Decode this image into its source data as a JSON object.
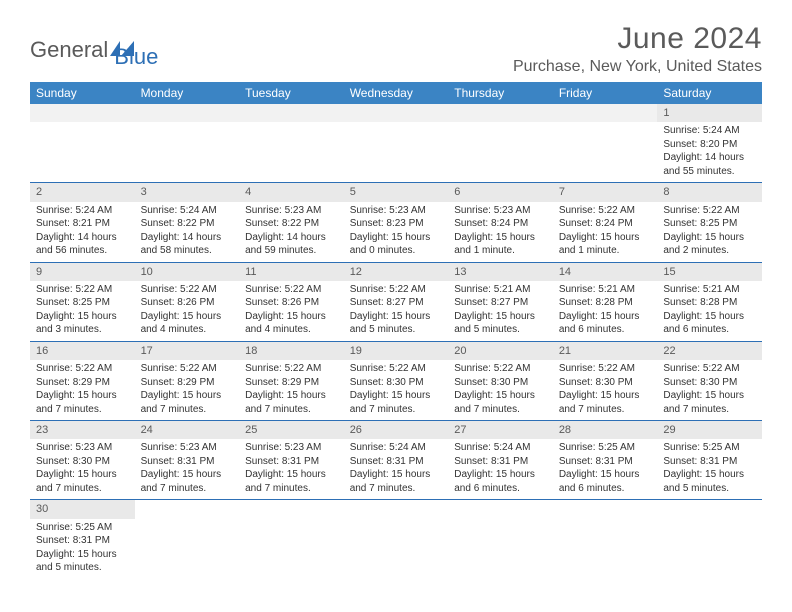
{
  "logo": {
    "text1": "General",
    "text2": "Blue"
  },
  "title": "June 2024",
  "location": "Purchase, New York, United States",
  "colors": {
    "header_bg": "#3b84c4",
    "header_text": "#ffffff",
    "daynum_bg": "#e9e9e9",
    "border": "#2d6fb5",
    "text": "#333333",
    "muted": "#5a5a5a",
    "logo_blue": "#2d6fb5"
  },
  "weekdays": [
    "Sunday",
    "Monday",
    "Tuesday",
    "Wednesday",
    "Thursday",
    "Friday",
    "Saturday"
  ],
  "weeks": [
    [
      null,
      null,
      null,
      null,
      null,
      null,
      {
        "n": "1",
        "sunrise": "Sunrise: 5:24 AM",
        "sunset": "Sunset: 8:20 PM",
        "daylight": "Daylight: 14 hours and 55 minutes."
      }
    ],
    [
      {
        "n": "2",
        "sunrise": "Sunrise: 5:24 AM",
        "sunset": "Sunset: 8:21 PM",
        "daylight": "Daylight: 14 hours and 56 minutes."
      },
      {
        "n": "3",
        "sunrise": "Sunrise: 5:24 AM",
        "sunset": "Sunset: 8:22 PM",
        "daylight": "Daylight: 14 hours and 58 minutes."
      },
      {
        "n": "4",
        "sunrise": "Sunrise: 5:23 AM",
        "sunset": "Sunset: 8:22 PM",
        "daylight": "Daylight: 14 hours and 59 minutes."
      },
      {
        "n": "5",
        "sunrise": "Sunrise: 5:23 AM",
        "sunset": "Sunset: 8:23 PM",
        "daylight": "Daylight: 15 hours and 0 minutes."
      },
      {
        "n": "6",
        "sunrise": "Sunrise: 5:23 AM",
        "sunset": "Sunset: 8:24 PM",
        "daylight": "Daylight: 15 hours and 1 minute."
      },
      {
        "n": "7",
        "sunrise": "Sunrise: 5:22 AM",
        "sunset": "Sunset: 8:24 PM",
        "daylight": "Daylight: 15 hours and 1 minute."
      },
      {
        "n": "8",
        "sunrise": "Sunrise: 5:22 AM",
        "sunset": "Sunset: 8:25 PM",
        "daylight": "Daylight: 15 hours and 2 minutes."
      }
    ],
    [
      {
        "n": "9",
        "sunrise": "Sunrise: 5:22 AM",
        "sunset": "Sunset: 8:25 PM",
        "daylight": "Daylight: 15 hours and 3 minutes."
      },
      {
        "n": "10",
        "sunrise": "Sunrise: 5:22 AM",
        "sunset": "Sunset: 8:26 PM",
        "daylight": "Daylight: 15 hours and 4 minutes."
      },
      {
        "n": "11",
        "sunrise": "Sunrise: 5:22 AM",
        "sunset": "Sunset: 8:26 PM",
        "daylight": "Daylight: 15 hours and 4 minutes."
      },
      {
        "n": "12",
        "sunrise": "Sunrise: 5:22 AM",
        "sunset": "Sunset: 8:27 PM",
        "daylight": "Daylight: 15 hours and 5 minutes."
      },
      {
        "n": "13",
        "sunrise": "Sunrise: 5:21 AM",
        "sunset": "Sunset: 8:27 PM",
        "daylight": "Daylight: 15 hours and 5 minutes."
      },
      {
        "n": "14",
        "sunrise": "Sunrise: 5:21 AM",
        "sunset": "Sunset: 8:28 PM",
        "daylight": "Daylight: 15 hours and 6 minutes."
      },
      {
        "n": "15",
        "sunrise": "Sunrise: 5:21 AM",
        "sunset": "Sunset: 8:28 PM",
        "daylight": "Daylight: 15 hours and 6 minutes."
      }
    ],
    [
      {
        "n": "16",
        "sunrise": "Sunrise: 5:22 AM",
        "sunset": "Sunset: 8:29 PM",
        "daylight": "Daylight: 15 hours and 7 minutes."
      },
      {
        "n": "17",
        "sunrise": "Sunrise: 5:22 AM",
        "sunset": "Sunset: 8:29 PM",
        "daylight": "Daylight: 15 hours and 7 minutes."
      },
      {
        "n": "18",
        "sunrise": "Sunrise: 5:22 AM",
        "sunset": "Sunset: 8:29 PM",
        "daylight": "Daylight: 15 hours and 7 minutes."
      },
      {
        "n": "19",
        "sunrise": "Sunrise: 5:22 AM",
        "sunset": "Sunset: 8:30 PM",
        "daylight": "Daylight: 15 hours and 7 minutes."
      },
      {
        "n": "20",
        "sunrise": "Sunrise: 5:22 AM",
        "sunset": "Sunset: 8:30 PM",
        "daylight": "Daylight: 15 hours and 7 minutes."
      },
      {
        "n": "21",
        "sunrise": "Sunrise: 5:22 AM",
        "sunset": "Sunset: 8:30 PM",
        "daylight": "Daylight: 15 hours and 7 minutes."
      },
      {
        "n": "22",
        "sunrise": "Sunrise: 5:22 AM",
        "sunset": "Sunset: 8:30 PM",
        "daylight": "Daylight: 15 hours and 7 minutes."
      }
    ],
    [
      {
        "n": "23",
        "sunrise": "Sunrise: 5:23 AM",
        "sunset": "Sunset: 8:30 PM",
        "daylight": "Daylight: 15 hours and 7 minutes."
      },
      {
        "n": "24",
        "sunrise": "Sunrise: 5:23 AM",
        "sunset": "Sunset: 8:31 PM",
        "daylight": "Daylight: 15 hours and 7 minutes."
      },
      {
        "n": "25",
        "sunrise": "Sunrise: 5:23 AM",
        "sunset": "Sunset: 8:31 PM",
        "daylight": "Daylight: 15 hours and 7 minutes."
      },
      {
        "n": "26",
        "sunrise": "Sunrise: 5:24 AM",
        "sunset": "Sunset: 8:31 PM",
        "daylight": "Daylight: 15 hours and 7 minutes."
      },
      {
        "n": "27",
        "sunrise": "Sunrise: 5:24 AM",
        "sunset": "Sunset: 8:31 PM",
        "daylight": "Daylight: 15 hours and 6 minutes."
      },
      {
        "n": "28",
        "sunrise": "Sunrise: 5:25 AM",
        "sunset": "Sunset: 8:31 PM",
        "daylight": "Daylight: 15 hours and 6 minutes."
      },
      {
        "n": "29",
        "sunrise": "Sunrise: 5:25 AM",
        "sunset": "Sunset: 8:31 PM",
        "daylight": "Daylight: 15 hours and 5 minutes."
      }
    ],
    [
      {
        "n": "30",
        "sunrise": "Sunrise: 5:25 AM",
        "sunset": "Sunset: 8:31 PM",
        "daylight": "Daylight: 15 hours and 5 minutes."
      },
      null,
      null,
      null,
      null,
      null,
      null
    ]
  ]
}
